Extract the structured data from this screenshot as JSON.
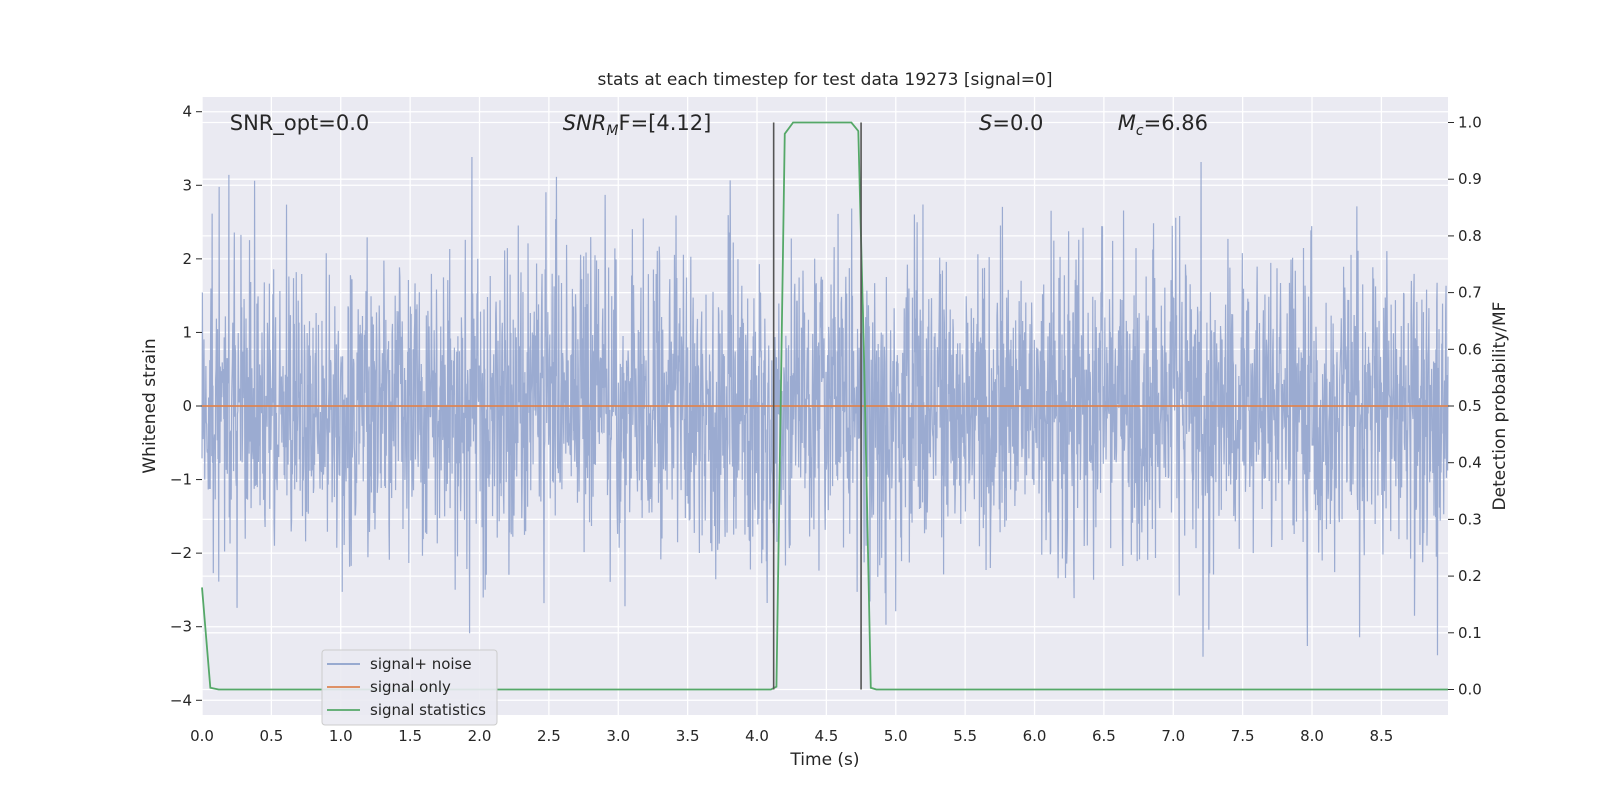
{
  "chart_data": {
    "type": "line",
    "title": "stats at each timestep for test data 19273 [signal=0]",
    "xlabel": "Time (s)",
    "ylabel": "Whitened strain",
    "ylabel_right": "Detection probability/MF",
    "xlim": [
      0,
      8.98
    ],
    "ylim": [
      -4.2,
      4.2
    ],
    "ylim_right": [
      -0.045,
      1.045
    ],
    "x_ticks": [
      "0.0",
      "0.5",
      "1.0",
      "1.5",
      "2.0",
      "2.5",
      "3.0",
      "3.5",
      "4.0",
      "4.5",
      "5.0",
      "5.5",
      "6.0",
      "6.5",
      "7.0",
      "7.5",
      "8.0",
      "8.5"
    ],
    "y_ticks": [
      "4",
      "3",
      "2",
      "1",
      "0",
      "−1",
      "−2",
      "−3",
      "−4"
    ],
    "y_ticks_right": [
      "1.0",
      "0.9",
      "0.8",
      "0.7",
      "0.6",
      "0.5",
      "0.4",
      "0.3",
      "0.2",
      "0.1",
      "0.0"
    ],
    "annotations": [
      {
        "text": "SNR_opt=0.0",
        "x": 0.2,
        "y": 3.85
      },
      {
        "base": "SNR",
        "sub": "M",
        "rest": "F=[4.12]",
        "x": 2.6,
        "y": 3.85
      },
      {
        "base": "S",
        "rest": "=0.0",
        "x": 5.6,
        "y": 3.85
      },
      {
        "base": "M",
        "sub": "c",
        "rest": "=6.86",
        "x": 6.6,
        "y": 3.85
      }
    ],
    "vlines": [
      4.12,
      4.75
    ],
    "series": [
      {
        "name": "signal+ noise",
        "color": "#8da0cb",
        "kind": "noise",
        "sigma": 1.0,
        "samples": 3200,
        "y_range": [
          -4.0,
          3.8
        ]
      },
      {
        "name": "signal only",
        "color": "#dd8452",
        "x": [
          0,
          8.98
        ],
        "y": [
          0,
          0
        ]
      },
      {
        "name": "signal statistics",
        "color": "#55a868",
        "axis": "right",
        "x": [
          0.0,
          0.06,
          0.12,
          4.1,
          4.14,
          4.2,
          4.26,
          4.68,
          4.73,
          4.77,
          4.82,
          4.86,
          8.98
        ],
        "y": [
          0.18,
          0.003,
          0.0,
          0.0,
          0.005,
          0.98,
          1.0,
          1.0,
          0.985,
          0.6,
          0.003,
          0.0,
          0.0
        ]
      }
    ],
    "legend_position": "lower left",
    "grid": true,
    "colors": {
      "background": "#eaeaf2",
      "grid": "#ffffff",
      "vline": "#555555"
    }
  }
}
